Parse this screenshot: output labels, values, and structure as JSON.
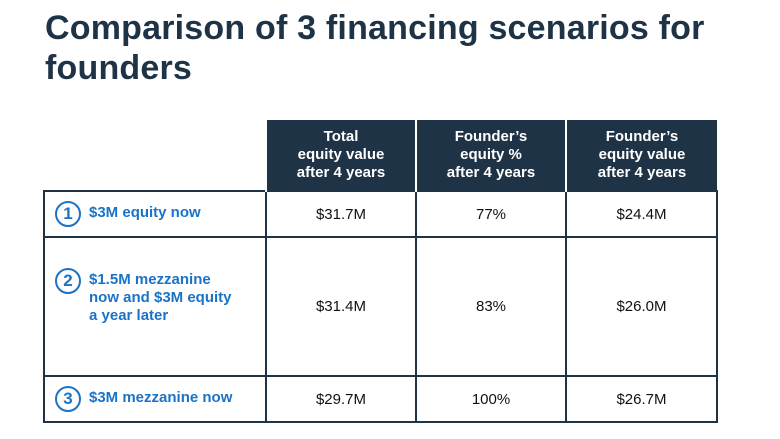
{
  "slide": {
    "title": "Comparison of 3 financing scenarios for founders"
  },
  "table": {
    "headers": [
      [
        "Total",
        "equity value",
        "after 4 years"
      ],
      [
        "Founder’s",
        "equity %",
        "after 4 years"
      ],
      [
        "Founder’s",
        "equity value",
        "after 4 years"
      ]
    ],
    "rows": [
      {
        "number": "1",
        "label_lines": [
          "$3M equity now"
        ],
        "cells": [
          "$31.7M",
          "77%",
          "$24.4M"
        ]
      },
      {
        "number": "2",
        "label_lines": [
          "$1.5M mezzanine",
          "now and $3M equity",
          "a year later"
        ],
        "cells": [
          "$31.4M",
          "83%",
          "$26.0M"
        ]
      },
      {
        "number": "3",
        "label_lines": [
          "$3M mezzanine now"
        ],
        "cells": [
          "$29.7M",
          "100%",
          "$26.7M"
        ]
      }
    ]
  },
  "colors": {
    "header_bg": "#1f3347",
    "accent": "#1a73c8",
    "title": "#1f3347"
  }
}
